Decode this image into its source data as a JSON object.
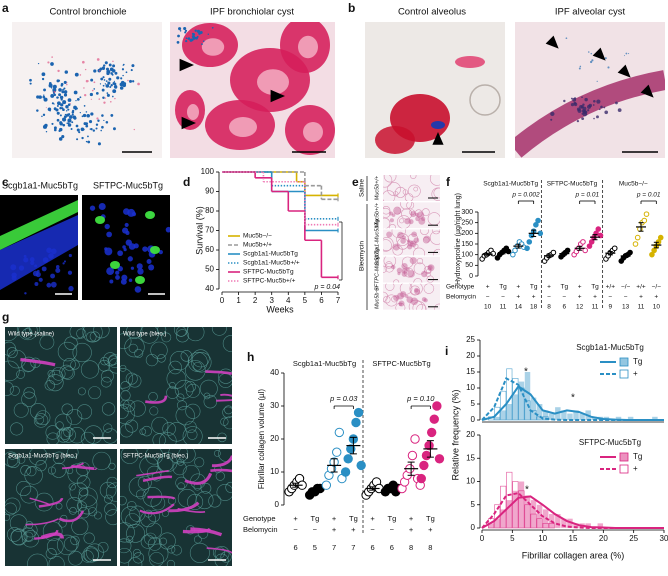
{
  "panels": {
    "a": {
      "letter": "a",
      "titles": [
        "Control bronchiole",
        "IPF bronchiolar cyst"
      ]
    },
    "b": {
      "letter": "b",
      "titles": [
        "Control alveolus",
        "IPF alveolar cyst"
      ]
    },
    "c": {
      "letter": "c",
      "titles": [
        "Scgb1a1-Muc5bTg",
        "SFTPC-Muc5bTg"
      ]
    },
    "e": {
      "letter": "e",
      "groups": [
        "Saline",
        "Bleomycin"
      ],
      "rows": [
        "Muc5b+/+",
        "Muc5b+/+",
        "Scgb1a1-Muc5bTg",
        "SFTPC-Muc5bTg",
        "Muc5b−/−"
      ]
    },
    "g": {
      "letter": "g",
      "labels": [
        "Wild type (saline)",
        "Wild type (bleo.)",
        "Scgb1a1-Muc5bTg (bleo.)",
        "SFTPC-Muc5bTg (bleo.)"
      ]
    }
  },
  "chart_data": [
    {
      "type": "line",
      "step": true,
      "panel": "d",
      "y_label": "Survival (%)",
      "x_label": "Weeks",
      "xlim": [
        0,
        7
      ],
      "ylim": [
        40,
        100
      ],
      "xticks": [
        0,
        1,
        2,
        3,
        4,
        5,
        6,
        7
      ],
      "yticks": [
        40,
        50,
        60,
        70,
        80,
        90,
        100
      ],
      "annotation": "p = 0.04",
      "series": [
        {
          "name": "Muc5b−/−",
          "color": "#d6b300",
          "dash": "solid",
          "x": [
            0,
            4.5,
            5,
            7
          ],
          "values": [
            100,
            95,
            88,
            88
          ]
        },
        {
          "name": "Muc5b+/+",
          "color": "#9a9a9a",
          "dash": "dashed",
          "x": [
            0,
            5,
            6,
            7
          ],
          "values": [
            100,
            93,
            86,
            86
          ]
        },
        {
          "name": "Scgb1a1-Muc5bTg",
          "color": "#2a8fc4",
          "dash": "solid",
          "x": [
            0,
            3,
            5,
            7
          ],
          "values": [
            100,
            90,
            70,
            70
          ]
        },
        {
          "name": "Scgb1a1-Muc5b+/+",
          "color": "#2a8fc4",
          "dash": "dotted",
          "x": [
            0,
            3,
            5,
            7
          ],
          "values": [
            100,
            93,
            76,
            76
          ]
        },
        {
          "name": "SFTPC-Muc5bTg",
          "color": "#d9247f",
          "dash": "solid",
          "x": [
            0,
            2,
            3,
            4,
            5,
            6,
            7
          ],
          "values": [
            100,
            97,
            90,
            80,
            65,
            46,
            46
          ]
        },
        {
          "name": "SFTPC-Muc5b+/+",
          "color": "#ef79b4",
          "dash": "dotted",
          "x": [
            0,
            2.5,
            5,
            7
          ],
          "values": [
            100,
            95,
            73,
            73
          ]
        }
      ]
    },
    {
      "type": "strip",
      "panel": "f",
      "y_label": "Hydroxyproline (µg/right lung)",
      "ylim": [
        0,
        300
      ],
      "yticks": [
        0,
        50,
        100,
        150,
        200,
        250,
        300
      ],
      "row_labels": [
        "Genotype",
        "Belomycin"
      ],
      "sections": [
        {
          "title": "Scgb1a1-Muc5bTg",
          "p": "p = 0.002"
        },
        {
          "title": "SFTPC-Muc5bTg",
          "p": "p = 0.01"
        },
        {
          "title": "Muc5b−/−",
          "p": "p = 0.01"
        }
      ],
      "groups": [
        {
          "genotype": "+",
          "bleomycin": "−",
          "n": 10,
          "color": "#000000",
          "filled": false,
          "values": [
            80,
            95,
            100,
            110,
            120,
            105
          ],
          "mean": 102,
          "sem": 5
        },
        {
          "genotype": "Tg",
          "bleomycin": "−",
          "n": 11,
          "color": "#000000",
          "filled": true,
          "values": [
            85,
            100,
            110,
            120,
            130,
            115
          ],
          "mean": 110,
          "sem": 6
        },
        {
          "genotype": "+",
          "bleomycin": "+",
          "n": 14,
          "color": "#2a8fc4",
          "filled": false,
          "values": [
            100,
            120,
            140,
            160,
            150,
            135
          ],
          "mean": 140,
          "sem": 9
        },
        {
          "genotype": "Tg",
          "bleomycin": "+",
          "n": 18,
          "color": "#2a8fc4",
          "filled": true,
          "values": [
            130,
            160,
            190,
            210,
            240,
            260,
            200
          ],
          "mean": 200,
          "sem": 15
        },
        {
          "genotype": "+",
          "bleomycin": "−",
          "n": 8,
          "color": "#000000",
          "filled": false,
          "values": [
            70,
            85,
            95,
            100,
            110
          ],
          "mean": 95,
          "sem": 7
        },
        {
          "genotype": "Tg",
          "bleomycin": "−",
          "n": 6,
          "color": "#000000",
          "filled": true,
          "values": [
            90,
            100,
            110,
            120
          ],
          "mean": 105,
          "sem": 7
        },
        {
          "genotype": "+",
          "bleomycin": "+",
          "n": 12,
          "color": "#d9247f",
          "filled": false,
          "values": [
            100,
            115,
            130,
            150,
            160,
            120
          ],
          "mean": 130,
          "sem": 9
        },
        {
          "genotype": "Tg",
          "bleomycin": "+",
          "n": 11,
          "color": "#d9247f",
          "filled": true,
          "values": [
            140,
            160,
            180,
            200,
            220,
            190
          ],
          "mean": 182,
          "sem": 12
        },
        {
          "genotype": "+/+",
          "bleomycin": "−",
          "n": 9,
          "color": "#000000",
          "filled": false,
          "values": [
            80,
            95,
            110,
            120,
            130
          ],
          "mean": 107,
          "sem": 8
        },
        {
          "genotype": "−/−",
          "bleomycin": "−",
          "n": 13,
          "color": "#000000",
          "filled": true,
          "values": [
            70,
            85,
            95,
            100,
            110
          ],
          "mean": 94,
          "sem": 7
        },
        {
          "genotype": "+/+",
          "bleomycin": "+",
          "n": 11,
          "color": "#d6b300",
          "filled": false,
          "values": [
            150,
            180,
            220,
            250,
            260,
            290
          ],
          "mean": 230,
          "sem": 20
        },
        {
          "genotype": "−/−",
          "bleomycin": "+",
          "n": 10,
          "color": "#d6b300",
          "filled": true,
          "values": [
            100,
            120,
            140,
            160,
            180
          ],
          "mean": 145,
          "sem": 13
        }
      ]
    },
    {
      "type": "strip",
      "panel": "h",
      "y_label": "Fibrillar collagen volume (µl)",
      "ylim": [
        0,
        40
      ],
      "yticks": [
        0,
        10,
        20,
        30,
        40
      ],
      "row_labels": [
        "Genotype",
        "Belomycin"
      ],
      "sections": [
        {
          "title": "Scgb1a1-Muc5bTg",
          "p": "p = 0.03"
        },
        {
          "title": "SFTPC-Muc5bTg",
          "p": "p = 0.10"
        }
      ],
      "groups": [
        {
          "genotype": "+",
          "bleomycin": "−",
          "n": 6,
          "color": "#000000",
          "filled": false,
          "values": [
            4,
            5,
            6,
            7,
            8,
            6
          ],
          "mean": 6,
          "sem": 0.6
        },
        {
          "genotype": "Tg",
          "bleomycin": "−",
          "n": 5,
          "color": "#000000",
          "filled": true,
          "values": [
            3,
            4,
            4,
            5,
            5
          ],
          "mean": 4.2,
          "sem": 0.4
        },
        {
          "genotype": "+",
          "bleomycin": "+",
          "n": 7,
          "color": "#2a8fc4",
          "filled": false,
          "values": [
            6,
            9,
            11,
            13,
            16,
            22,
            8
          ],
          "mean": 12,
          "sem": 2
        },
        {
          "genotype": "Tg",
          "bleomycin": "+",
          "n": 7,
          "color": "#2a8fc4",
          "filled": true,
          "values": [
            10,
            14,
            17,
            20,
            25,
            28,
            12
          ],
          "mean": 18,
          "sem": 2.5
        },
        {
          "genotype": "+",
          "bleomycin": "−",
          "n": 6,
          "color": "#000000",
          "filled": false,
          "values": [
            3,
            4,
            5,
            6,
            7,
            5
          ],
          "mean": 5,
          "sem": 0.5
        },
        {
          "genotype": "Tg",
          "bleomycin": "−",
          "n": 6,
          "color": "#000000",
          "filled": true,
          "values": [
            4,
            5,
            5,
            6,
            4,
            5
          ],
          "mean": 5,
          "sem": 0.3
        },
        {
          "genotype": "+",
          "bleomycin": "+",
          "n": 8,
          "color": "#d9247f",
          "filled": false,
          "values": [
            5,
            7,
            9,
            11,
            15,
            20,
            8,
            6
          ],
          "mean": 11,
          "sem": 2
        },
        {
          "genotype": "Tg",
          "bleomycin": "+",
          "n": 8,
          "color": "#d9247f",
          "filled": true,
          "values": [
            8,
            12,
            15,
            18,
            22,
            26,
            30,
            14
          ],
          "mean": 17,
          "sem": 2.5
        }
      ]
    },
    {
      "type": "histogram",
      "panel": "i",
      "title": "Scgb1a1-Muc5bTg",
      "y_label": "Relative frequency (%)",
      "xlim": [
        0,
        30
      ],
      "ylim": [
        0,
        25
      ],
      "yticks": [
        0,
        5,
        10,
        15,
        20,
        25
      ],
      "bins": [
        0,
        1,
        2,
        3,
        4,
        5,
        6,
        7,
        8,
        9,
        10,
        11,
        12,
        13,
        14,
        15,
        16,
        17,
        18,
        19,
        20,
        21,
        22,
        23,
        24,
        25,
        26,
        27,
        28,
        29,
        30
      ],
      "curve_x": [
        0,
        2,
        4,
        6,
        8,
        10,
        12,
        14,
        16,
        18,
        20,
        22,
        24,
        26,
        28,
        30
      ],
      "annotations": [
        "*",
        "*"
      ],
      "series": [
        {
          "name": "Tg",
          "color": "#2a8fc4",
          "filled": true,
          "dash": "solid",
          "values": [
            0,
            0,
            1,
            3,
            5,
            8,
            12,
            15,
            7,
            5,
            3,
            2,
            4,
            3,
            2,
            3,
            2,
            3,
            1,
            1,
            1,
            0,
            1,
            0,
            1,
            0,
            0,
            0,
            1,
            0
          ],
          "curve": [
            0,
            1,
            5,
            10.5,
            8,
            3,
            2,
            3,
            2.5,
            1,
            0.3,
            0.1,
            0,
            0,
            0,
            0
          ]
        },
        {
          "name": "+",
          "color": "#2a8fc4",
          "filled": false,
          "dash": "dashed",
          "values": [
            0,
            1,
            4,
            9,
            16,
            13,
            10,
            6,
            3,
            1,
            1,
            0,
            0,
            0,
            0,
            0,
            0,
            0,
            0,
            0,
            0,
            0,
            0,
            0,
            0,
            0,
            0,
            0,
            0,
            0
          ],
          "curve": [
            0,
            4,
            13,
            11,
            3,
            0.5,
            0.1,
            0,
            0,
            0,
            0,
            0,
            0,
            0,
            0,
            0
          ]
        }
      ]
    },
    {
      "type": "histogram",
      "title": "SFTPC-Muc5bTg",
      "x_label": "Fibrillar collagen area (%)",
      "xlim": [
        0,
        30
      ],
      "ylim": [
        0,
        20
      ],
      "xticks": [
        0,
        5,
        10,
        15,
        20,
        25,
        30
      ],
      "yticks": [
        0,
        5,
        10,
        15,
        20
      ],
      "bins": [
        0,
        1,
        2,
        3,
        4,
        5,
        6,
        7,
        8,
        9,
        10,
        11,
        12,
        13,
        14,
        15,
        16,
        17,
        18,
        19,
        20,
        21,
        22,
        23,
        24,
        25,
        26,
        27,
        28,
        29,
        30
      ],
      "curve_x": [
        0,
        2,
        4,
        6,
        8,
        10,
        12,
        14,
        16,
        18,
        20,
        22,
        24,
        26,
        28,
        30
      ],
      "annotations": [
        "*"
      ],
      "series": [
        {
          "name": "Tg",
          "color": "#d9247f",
          "filled": true,
          "dash": "solid",
          "values": [
            0,
            1,
            2,
            4,
            6,
            8,
            10,
            7,
            6,
            5,
            4,
            3,
            3,
            2,
            2,
            1,
            1,
            1,
            0,
            1,
            0,
            0,
            0,
            0,
            0,
            0,
            0,
            0,
            0,
            0
          ],
          "curve": [
            0,
            1.5,
            4,
            6.5,
            6.8,
            5,
            3,
            1.5,
            0.6,
            0.2,
            0.1,
            0,
            0,
            0,
            0,
            0
          ]
        },
        {
          "name": "+",
          "color": "#d9247f",
          "filled": false,
          "dash": "dashed",
          "values": [
            0,
            2,
            5,
            9,
            12,
            10,
            8,
            5,
            3,
            2,
            1,
            1,
            0,
            0,
            0,
            0,
            0,
            0,
            0,
            0,
            0,
            0,
            0,
            0,
            0,
            0,
            0,
            0,
            0,
            0
          ],
          "curve": [
            0,
            3,
            7,
            7.5,
            5,
            2.5,
            1,
            0.3,
            0.1,
            0,
            0,
            0,
            0,
            0,
            0,
            0
          ]
        }
      ]
    }
  ]
}
